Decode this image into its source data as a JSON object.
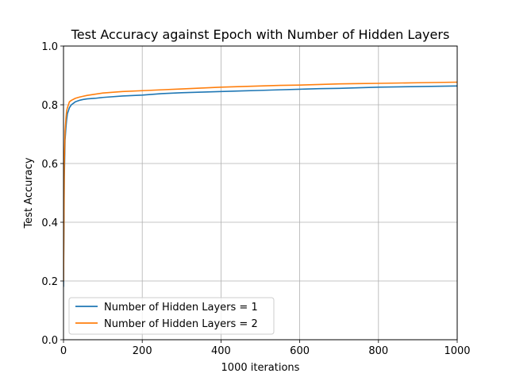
{
  "chart_data": {
    "type": "line",
    "title": "Test Accuracy against Epoch with Number of Hidden Layers",
    "xlabel": "1000 iterations",
    "ylabel": "Test Accuracy",
    "xlim": [
      0,
      1000
    ],
    "ylim": [
      0.0,
      1.0
    ],
    "xticks": [
      0,
      200,
      400,
      600,
      800,
      1000
    ],
    "xtick_labels": [
      "0",
      "200",
      "400",
      "600",
      "800",
      "1000"
    ],
    "yticks": [
      0.0,
      0.2,
      0.4,
      0.6,
      0.8,
      1.0
    ],
    "ytick_labels": [
      "0.0",
      "0.2",
      "0.4",
      "0.6",
      "0.8",
      "1.0"
    ],
    "grid": true,
    "legend_position": "lower-left",
    "series": [
      {
        "name": "Number of Hidden Layers = 1",
        "color": "#1f77b4",
        "x": [
          0,
          2,
          4,
          6,
          8,
          10,
          15,
          20,
          30,
          40,
          50,
          60,
          80,
          100,
          150,
          200,
          250,
          300,
          350,
          400,
          450,
          500,
          550,
          600,
          650,
          700,
          750,
          800,
          850,
          900,
          950,
          1000
        ],
        "y": [
          0.18,
          0.55,
          0.68,
          0.72,
          0.75,
          0.77,
          0.79,
          0.8,
          0.81,
          0.815,
          0.818,
          0.82,
          0.822,
          0.825,
          0.83,
          0.833,
          0.838,
          0.841,
          0.843,
          0.845,
          0.847,
          0.849,
          0.851,
          0.853,
          0.855,
          0.856,
          0.858,
          0.86,
          0.861,
          0.862,
          0.863,
          0.864
        ]
      },
      {
        "name": "Number of Hidden Layers = 2",
        "color": "#ff7f0e",
        "x": [
          0,
          2,
          4,
          6,
          8,
          10,
          15,
          20,
          30,
          40,
          50,
          60,
          80,
          100,
          150,
          200,
          250,
          300,
          350,
          400,
          450,
          500,
          550,
          600,
          650,
          700,
          750,
          800,
          850,
          900,
          950,
          1000
        ],
        "y": [
          0.2,
          0.6,
          0.71,
          0.75,
          0.78,
          0.79,
          0.81,
          0.815,
          0.822,
          0.826,
          0.829,
          0.832,
          0.836,
          0.84,
          0.845,
          0.848,
          0.851,
          0.854,
          0.857,
          0.86,
          0.862,
          0.864,
          0.866,
          0.867,
          0.869,
          0.871,
          0.872,
          0.873,
          0.874,
          0.875,
          0.876,
          0.877
        ]
      }
    ]
  }
}
